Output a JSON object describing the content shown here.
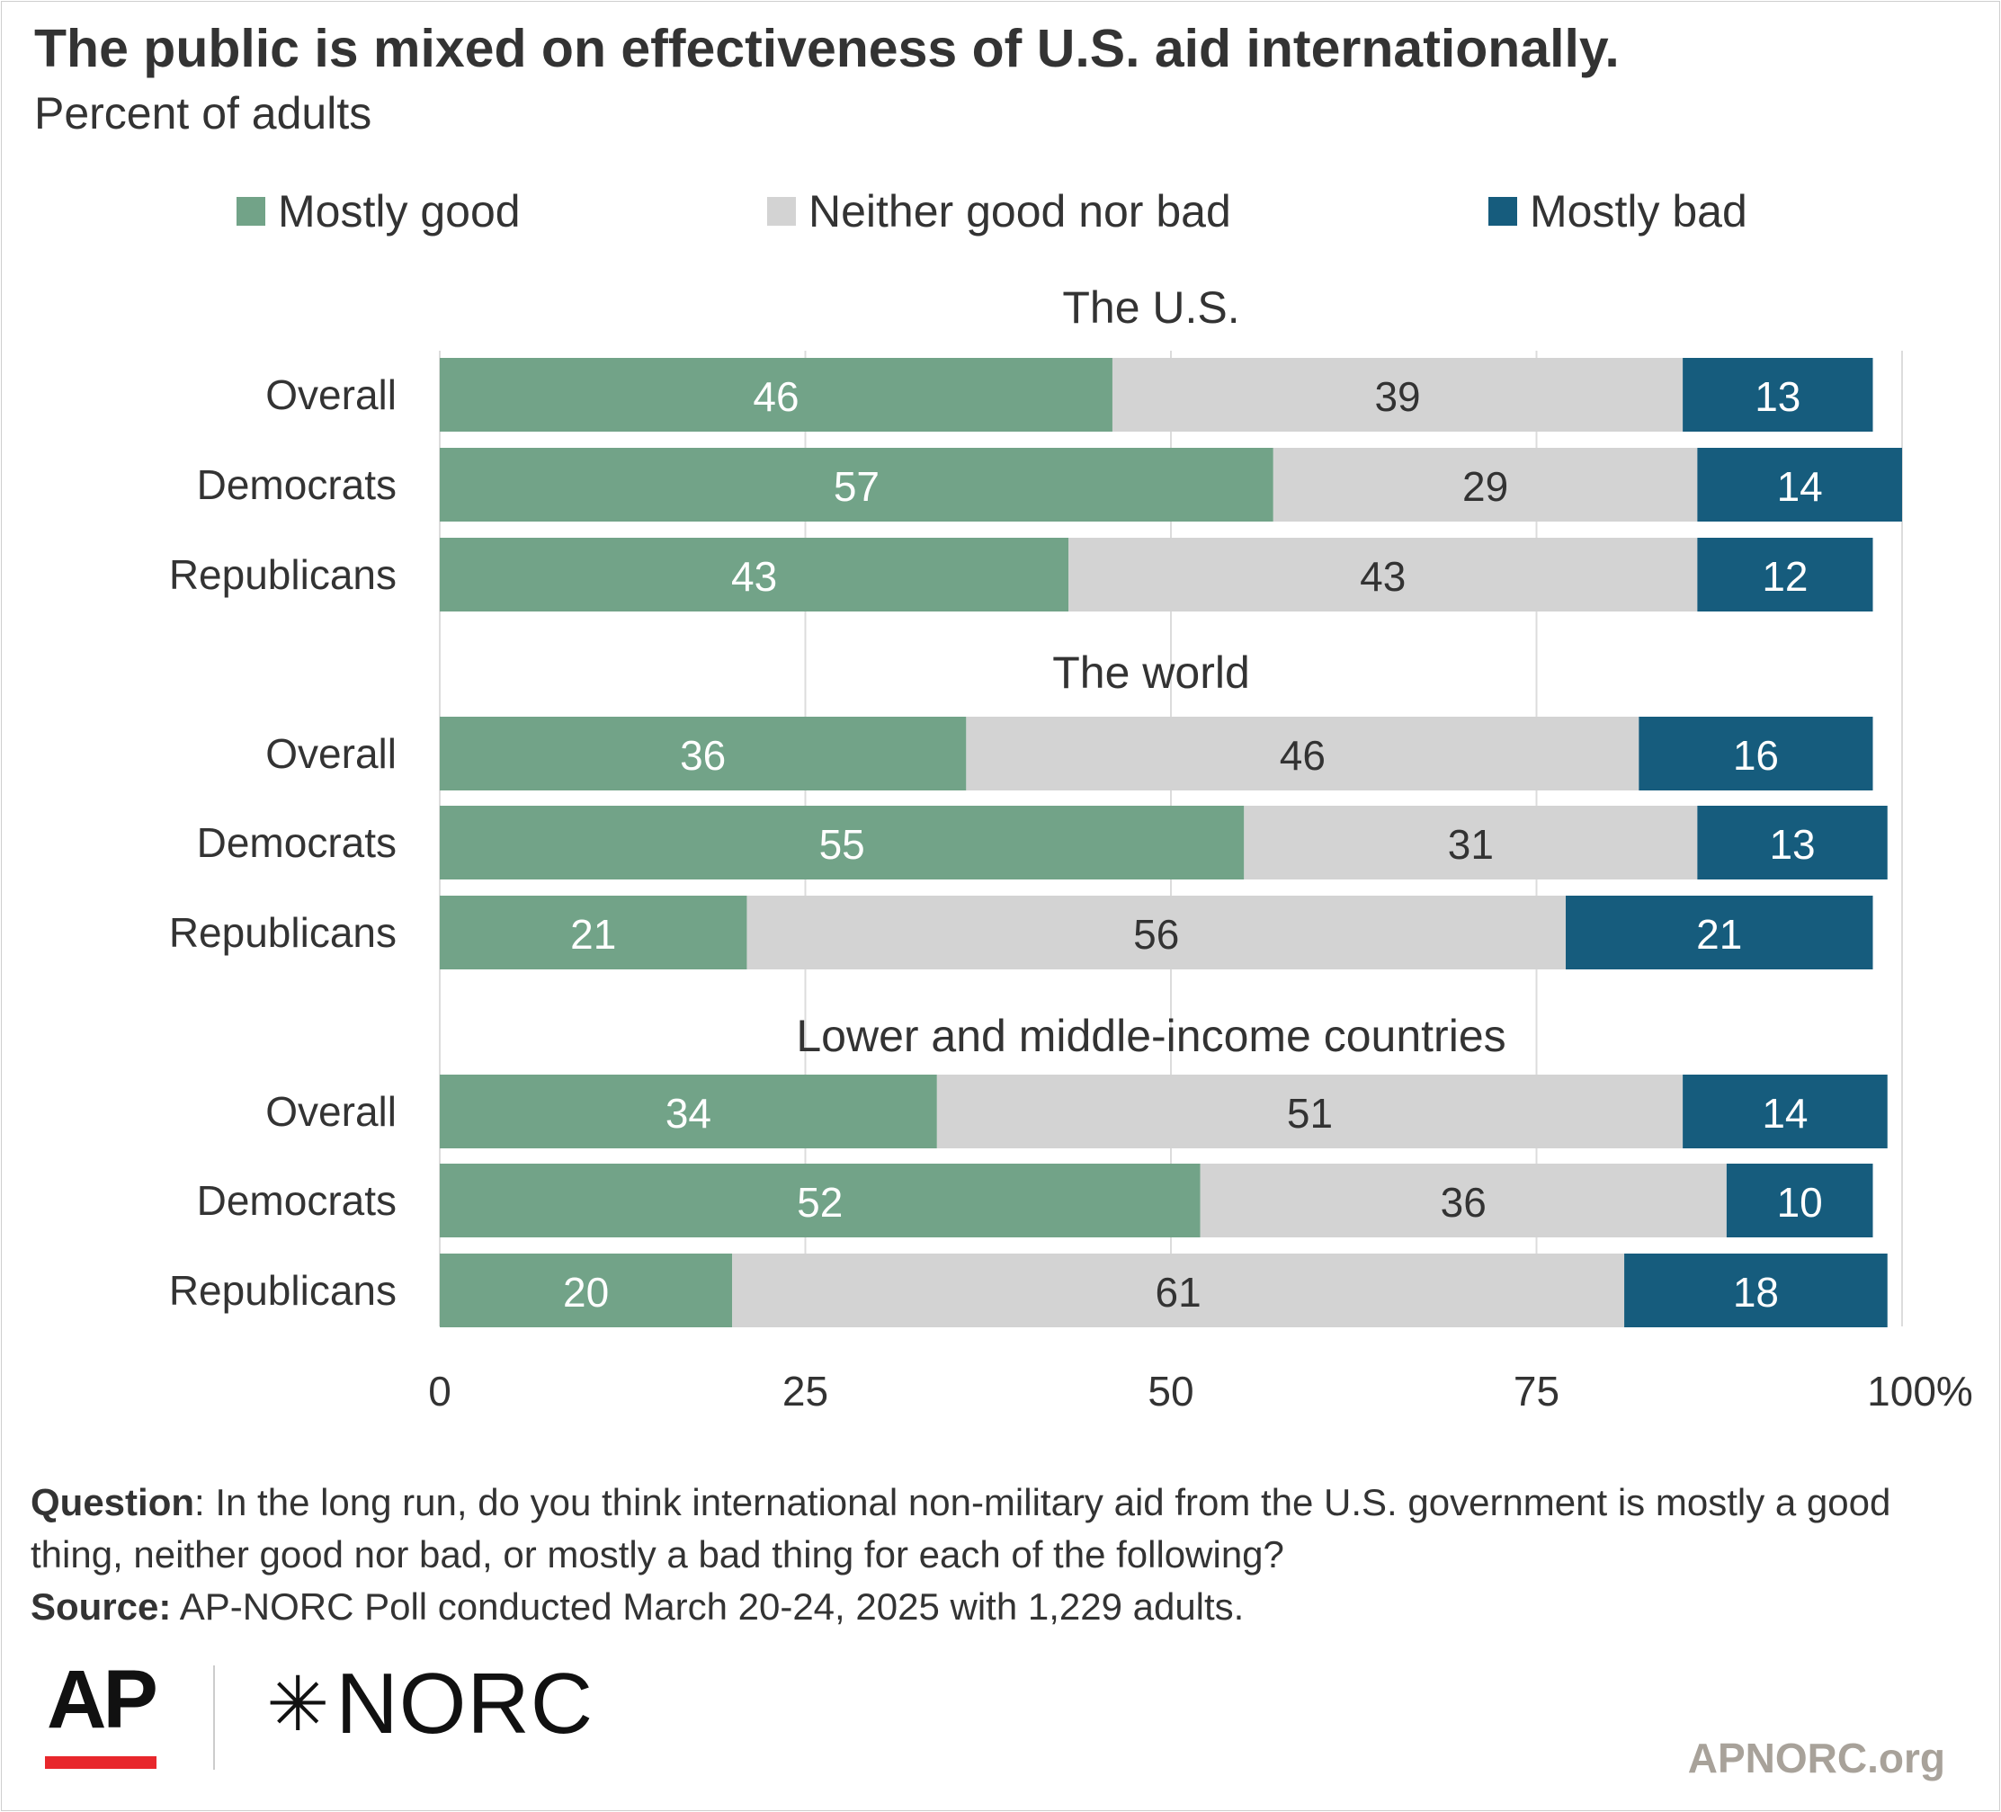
{
  "header": {
    "title": "The public is mixed on effectiveness of U.S. aid internationally.",
    "subtitle": "Percent of adults"
  },
  "legend": [
    {
      "label": "Mostly good",
      "color": "#72a388"
    },
    {
      "label": "Neither good nor bad",
      "color": "#d3d3d3"
    },
    {
      "label": "Mostly bad",
      "color": "#165c7d"
    }
  ],
  "chart_data": {
    "type": "bar",
    "orientation": "horizontal",
    "stacked": true,
    "xlim": [
      0,
      100
    ],
    "x_ticks": [
      "0",
      "25",
      "50",
      "75",
      "100%"
    ],
    "grid": true,
    "legend_position": "top",
    "series_names": [
      "Mostly good",
      "Neither good nor bad",
      "Mostly bad"
    ],
    "colors": [
      "#72a388",
      "#d3d3d3",
      "#165c7d"
    ],
    "panels": [
      {
        "title": "The U.S.",
        "categories": [
          "Overall",
          "Democrats",
          "Republicans"
        ],
        "values": [
          [
            46,
            39,
            13
          ],
          [
            57,
            29,
            14
          ],
          [
            43,
            43,
            12
          ]
        ]
      },
      {
        "title": "The world",
        "categories": [
          "Overall",
          "Democrats",
          "Republicans"
        ],
        "values": [
          [
            36,
            46,
            16
          ],
          [
            55,
            31,
            13
          ],
          [
            21,
            56,
            21
          ]
        ]
      },
      {
        "title": "Lower and middle-income countries",
        "categories": [
          "Overall",
          "Democrats",
          "Republicans"
        ],
        "values": [
          [
            34,
            51,
            14
          ],
          [
            52,
            36,
            10
          ],
          [
            20,
            61,
            18
          ]
        ]
      }
    ]
  },
  "footer": {
    "question_label": "Question",
    "question_text": ": In the long run, do you think international non-military aid from the U.S. government is mostly a good thing, neither good nor bad, or mostly a bad thing for each of the following?",
    "source_label": "Source:",
    "source_text": " AP-NORC Poll conducted March 20-24, 2025 with 1,229 adults."
  },
  "branding": {
    "ap_logo": "AP",
    "norc_logo": "NORC",
    "site": "APNORC.org"
  }
}
